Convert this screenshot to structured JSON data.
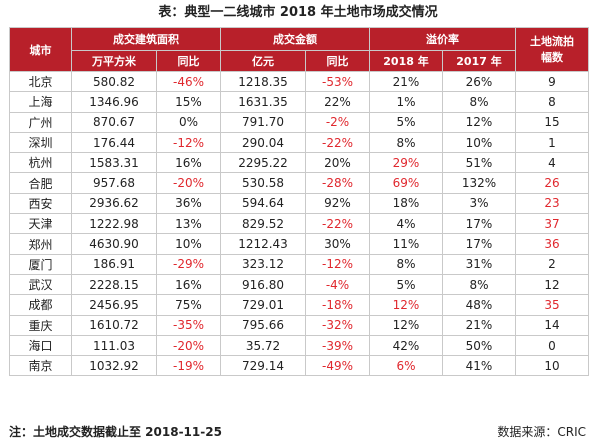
{
  "title": "表：典型一二线城市 2018 年土地市场成交情况",
  "header": {
    "city": "城市",
    "area_group": "成交建筑面积",
    "money_group": "成交金额",
    "premium_group": "溢价率",
    "flow_group": "土地流拍\n幅数",
    "area_unit": "万平方米",
    "area_yoy": "同比",
    "money_unit": "亿元",
    "money_yoy": "同比",
    "prem_2018": "2018 年",
    "prem_2017": "2017 年"
  },
  "rows": [
    {
      "city": "北京",
      "area": "580.82",
      "area_yoy": "-46%",
      "money": "1218.35",
      "money_yoy": "-53%",
      "p2018": "21%",
      "p2017": "26%",
      "flow": "9"
    },
    {
      "city": "上海",
      "area": "1346.96",
      "area_yoy": "15%",
      "money": "1631.35",
      "money_yoy": "22%",
      "p2018": "1%",
      "p2017": "8%",
      "flow": "8"
    },
    {
      "city": "广州",
      "area": "870.67",
      "area_yoy": "0%",
      "money": "791.70",
      "money_yoy": "-2%",
      "p2018": "5%",
      "p2017": "12%",
      "flow": "15"
    },
    {
      "city": "深圳",
      "area": "176.44",
      "area_yoy": "-12%",
      "money": "290.04",
      "money_yoy": "-22%",
      "p2018": "8%",
      "p2017": "10%",
      "flow": "1"
    },
    {
      "city": "杭州",
      "area": "1583.31",
      "area_yoy": "16%",
      "money": "2295.22",
      "money_yoy": "20%",
      "p2018": "29%",
      "p2017": "51%",
      "flow": "4"
    },
    {
      "city": "合肥",
      "area": "957.68",
      "area_yoy": "-20%",
      "money": "530.58",
      "money_yoy": "-28%",
      "p2018": "69%",
      "p2017": "132%",
      "flow": "26"
    },
    {
      "city": "西安",
      "area": "2936.62",
      "area_yoy": "36%",
      "money": "594.64",
      "money_yoy": "92%",
      "p2018": "18%",
      "p2017": "3%",
      "flow": "23"
    },
    {
      "city": "天津",
      "area": "1222.98",
      "area_yoy": "13%",
      "money": "829.52",
      "money_yoy": "-22%",
      "p2018": "4%",
      "p2017": "17%",
      "flow": "37"
    },
    {
      "city": "郑州",
      "area": "4630.90",
      "area_yoy": "10%",
      "money": "1212.43",
      "money_yoy": "30%",
      "p2018": "11%",
      "p2017": "17%",
      "flow": "36"
    },
    {
      "city": "厦门",
      "area": "186.91",
      "area_yoy": "-29%",
      "money": "323.12",
      "money_yoy": "-12%",
      "p2018": "8%",
      "p2017": "31%",
      "flow": "2"
    },
    {
      "city": "武汉",
      "area": "2228.15",
      "area_yoy": "16%",
      "money": "916.80",
      "money_yoy": "-4%",
      "p2018": "5%",
      "p2017": "8%",
      "flow": "12"
    },
    {
      "city": "成都",
      "area": "2456.95",
      "area_yoy": "75%",
      "money": "729.01",
      "money_yoy": "-18%",
      "p2018": "12%",
      "p2017": "48%",
      "flow": "35"
    },
    {
      "city": "重庆",
      "area": "1610.72",
      "area_yoy": "-35%",
      "money": "795.66",
      "money_yoy": "-32%",
      "p2018": "12%",
      "p2017": "21%",
      "flow": "14"
    },
    {
      "city": "海口",
      "area": "111.03",
      "area_yoy": "-20%",
      "money": "35.72",
      "money_yoy": "-39%",
      "p2018": "42%",
      "p2017": "50%",
      "flow": "0"
    },
    {
      "city": "南京",
      "area": "1032.92",
      "area_yoy": "-19%",
      "money": "729.14",
      "money_yoy": "-49%",
      "p2018": "6%",
      "p2017": "41%",
      "flow": "10"
    }
  ],
  "red_cells": {
    "杭州": [
      "p2018"
    ],
    "合肥": [
      "p2018",
      "flow"
    ],
    "西安": [
      "flow"
    ],
    "天津": [
      "flow"
    ],
    "郑州": [
      "flow"
    ],
    "成都": [
      "p2018",
      "flow"
    ],
    "南京": [
      "p2018"
    ]
  },
  "footnote": "注：土地成交数据截止至 2018-11-25",
  "source": "数据来源：CRIC",
  "colors": {
    "header_bg": "#b8202a",
    "header_text": "#ffffff",
    "negative": "#e0282e",
    "border": "#c9c9c9"
  }
}
